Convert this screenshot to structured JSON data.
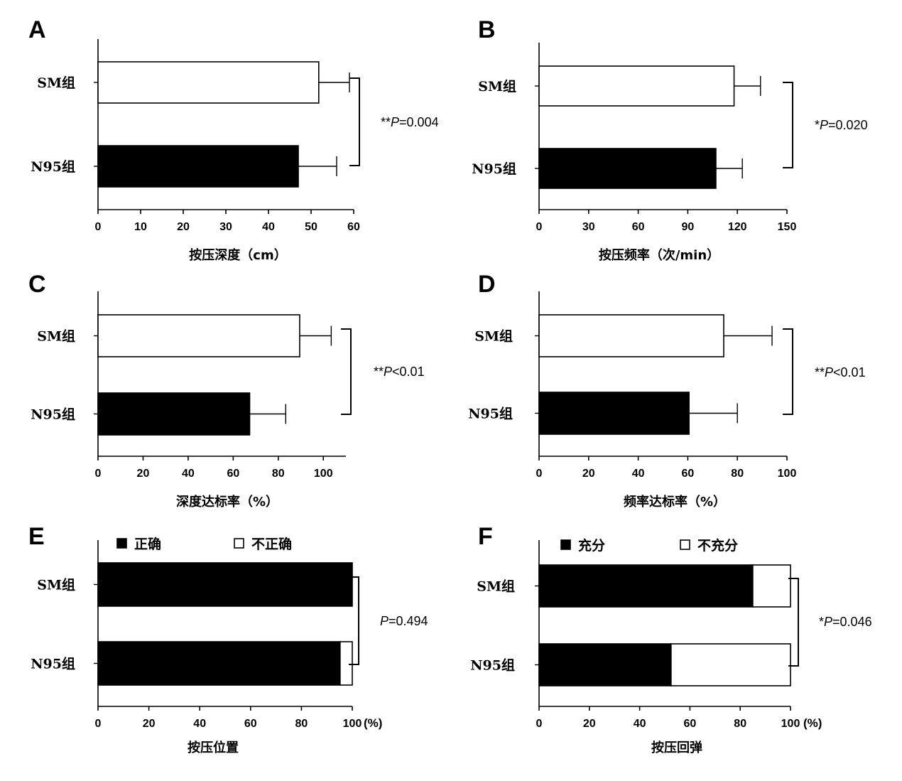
{
  "chart_data": [
    {
      "panel": "A",
      "type": "bar",
      "orientation": "horizontal",
      "categories": [
        "SM组",
        "N95组"
      ],
      "series": [
        {
          "values": [
            51.8,
            47.0
          ],
          "errors": [
            7.2,
            9.0
          ]
        }
      ],
      "bar_colors": [
        "#ffffff",
        "#000000"
      ],
      "xlabel": "按压深度（cm）",
      "xlim": [
        0,
        60
      ],
      "xticks": [
        0,
        10,
        20,
        30,
        40,
        50,
        60
      ],
      "significance": "**P=0.004",
      "sig_prefix": "**",
      "sig_p": "P",
      "sig_rest": "=0.004",
      "grid": false
    },
    {
      "panel": "B",
      "type": "bar",
      "orientation": "horizontal",
      "categories": [
        "SM组",
        "N95组"
      ],
      "series": [
        {
          "values": [
            118,
            107
          ],
          "errors": [
            16,
            16
          ]
        }
      ],
      "bar_colors": [
        "#ffffff",
        "#000000"
      ],
      "xlabel": "按压频率（次/min）",
      "xlim": [
        0,
        150
      ],
      "xticks": [
        0,
        30,
        60,
        90,
        120,
        150
      ],
      "significance": "*P=0.020",
      "sig_prefix": "*",
      "sig_p": "P",
      "sig_rest": "=0.020",
      "grid": false
    },
    {
      "panel": "C",
      "type": "bar",
      "orientation": "horizontal",
      "categories": [
        "SM组",
        "N95组"
      ],
      "series": [
        {
          "values": [
            89.5,
            67.3
          ],
          "errors": [
            14.0,
            16.0
          ]
        }
      ],
      "bar_colors": [
        "#ffffff",
        "#000000"
      ],
      "xlabel": "深度达标率（%）",
      "xlim": [
        0,
        110
      ],
      "xticks": [
        0,
        20,
        40,
        60,
        80,
        100
      ],
      "significance": "**P<0.01",
      "sig_prefix": "**",
      "sig_p": "P",
      "sig_rest": "<0.01",
      "grid": false
    },
    {
      "panel": "D",
      "type": "bar",
      "orientation": "horizontal",
      "categories": [
        "SM组",
        "N95组"
      ],
      "series": [
        {
          "values": [
            74.5,
            60.5
          ],
          "errors": [
            19.5,
            19.5
          ]
        }
      ],
      "bar_colors": [
        "#ffffff",
        "#000000"
      ],
      "xlabel": "频率达标率（%）",
      "xlim": [
        0,
        100
      ],
      "xticks": [
        0,
        20,
        40,
        60,
        80,
        100
      ],
      "significance": "**P<0.01",
      "sig_prefix": "**",
      "sig_p": "P",
      "sig_rest": "<0.01",
      "grid": false
    },
    {
      "panel": "E",
      "type": "bar",
      "orientation": "horizontal",
      "stacked": true,
      "categories": [
        "SM组",
        "N95组"
      ],
      "series": [
        {
          "name": "正确",
          "values": [
            100,
            95.2
          ],
          "color": "#000000"
        },
        {
          "name": "不正确",
          "values": [
            0,
            4.8
          ],
          "color": "#ffffff"
        }
      ],
      "xlabel": "按压位置",
      "xunit": "(%)",
      "xlim": [
        0,
        100
      ],
      "xticks": [
        0,
        20,
        40,
        60,
        80,
        100
      ],
      "legend": "top",
      "significance": "P=0.494",
      "sig_prefix": "",
      "sig_p": "P",
      "sig_rest": "=0.494",
      "grid": false
    },
    {
      "panel": "F",
      "type": "bar",
      "orientation": "horizontal",
      "stacked": true,
      "categories": [
        "SM组",
        "N95组"
      ],
      "series": [
        {
          "name": "充分",
          "values": [
            85,
            52.5
          ],
          "color": "#000000"
        },
        {
          "name": "不充分",
          "values": [
            15,
            47.5
          ],
          "color": "#ffffff"
        }
      ],
      "xlabel": "按压回弹",
      "xunit": "(%)",
      "xlim": [
        0,
        100
      ],
      "xticks": [
        0,
        20,
        40,
        60,
        80,
        100
      ],
      "legend": "top",
      "significance": "*P=0.046",
      "sig_prefix": "*",
      "sig_p": "P",
      "sig_rest": "=0.046",
      "grid": false
    }
  ]
}
